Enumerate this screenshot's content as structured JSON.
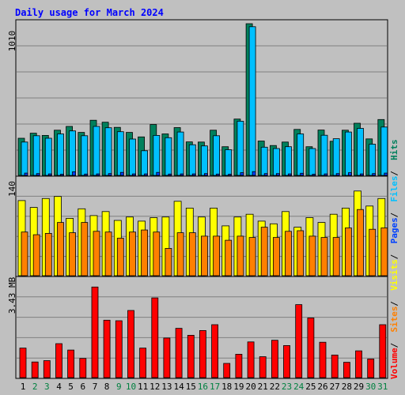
{
  "chart_data": {
    "type": "bar",
    "title": "Daily usage for March 2024",
    "colors": {
      "background": "#c0c0c0",
      "plot_bg": "#c0c0c0",
      "title": "#0000ff",
      "hits": "#00805c",
      "files": "#00c0ff",
      "pages": "#0040ff",
      "visits": "#ffff00",
      "sites": "#ff8000",
      "volume": "#ff0000",
      "grid": "#808080",
      "x_label_weekday": "#000000",
      "x_label_weekend": "#008040"
    },
    "categories": [
      "1",
      "2",
      "3",
      "4",
      "5",
      "6",
      "7",
      "8",
      "9",
      "10",
      "11",
      "12",
      "13",
      "14",
      "15",
      "16",
      "17",
      "18",
      "19",
      "20",
      "21",
      "22",
      "23",
      "24",
      "25",
      "26",
      "27",
      "28",
      "29",
      "30",
      "31"
    ],
    "weekend_days": [
      "2",
      "3",
      "9",
      "10",
      "16",
      "17",
      "23",
      "24",
      "30",
      "31"
    ],
    "top": {
      "ymax_label": "1010",
      "ylim": [
        0,
        1010
      ],
      "series": [
        {
          "name": "Hits",
          "values": [
            247,
            281,
            266,
            301,
            326,
            286,
            367,
            354,
            320,
            286,
            256,
            339,
            276,
            318,
            223,
            222,
            301,
            191,
            375,
            1010,
            229,
            199,
            222,
            306,
            191,
            302,
            227,
            301,
            347,
            243,
            372
          ]
        },
        {
          "name": "Files",
          "values": [
            222,
            264,
            247,
            276,
            296,
            264,
            326,
            317,
            291,
            242,
            164,
            266,
            251,
            289,
            204,
            196,
            264,
            171,
            361,
            990,
            188,
            179,
            191,
            276,
            179,
            267,
            244,
            289,
            313,
            208,
            322
          ]
        },
        {
          "name": "Pages",
          "values": [
            15,
            12,
            10,
            8,
            24,
            9,
            10,
            12,
            20,
            10,
            10,
            20,
            9,
            10,
            10,
            12,
            9,
            8,
            18,
            25,
            12,
            12,
            10,
            14,
            8,
            10,
            12,
            18,
            10,
            12,
            15
          ]
        }
      ]
    },
    "middle": {
      "ymax_label": "140",
      "ylim": [
        0,
        140
      ],
      "series": [
        {
          "name": "Visits",
          "values": [
            110,
            100,
            113,
            116,
            84,
            98,
            88,
            94,
            81,
            86,
            80,
            85,
            86,
            109,
            99,
            86,
            99,
            73,
            86,
            90,
            80,
            76,
            94,
            71,
            85,
            78,
            90,
            99,
            124,
            102,
            113
          ]
        },
        {
          "name": "Sites",
          "values": [
            64,
            60,
            62,
            78,
            63,
            78,
            65,
            64,
            55,
            64,
            67,
            64,
            40,
            63,
            63,
            58,
            58,
            52,
            58,
            56,
            71,
            56,
            65,
            66,
            58,
            56,
            56,
            70,
            97,
            68,
            70
          ]
        }
      ]
    },
    "bottom": {
      "ymax_label": "3.43 MB",
      "ylim": [
        0,
        3.43
      ],
      "series": [
        {
          "name": "Volume",
          "values": [
            1.06,
            0.56,
            0.61,
            1.22,
            0.99,
            0.69,
            3.25,
            2.06,
            2.04,
            2.41,
            1.06,
            2.86,
            1.42,
            1.77,
            1.52,
            1.69,
            1.9,
            0.51,
            0.84,
            1.28,
            0.75,
            1.34,
            1.15,
            2.62,
            2.14,
            1.27,
            0.81,
            0.55,
            0.96,
            0.67,
            1.9
          ]
        }
      ]
    },
    "legend": [
      "Volume",
      "Sites",
      "Visits",
      "Pages",
      "Files",
      "Hits"
    ],
    "legend_separator": " / ",
    "legend_placement": "right-vertical"
  }
}
